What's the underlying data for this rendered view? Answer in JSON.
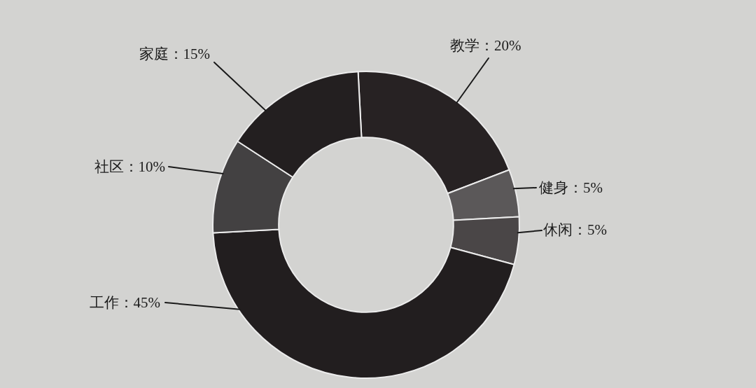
{
  "chart_data": {
    "type": "donut",
    "categories": [
      "教学",
      "健身",
      "休闲",
      "工作",
      "社区",
      "家庭"
    ],
    "values": [
      20,
      5,
      5,
      45,
      10,
      15
    ],
    "value_labels": [
      "：20%",
      "：5%",
      "：5%",
      "：45%",
      "：10%",
      "：15%"
    ],
    "colors": [
      "#272223",
      "#5b5859",
      "#4a4647",
      "#221e1f",
      "#434142",
      "#231f20"
    ]
  }
}
